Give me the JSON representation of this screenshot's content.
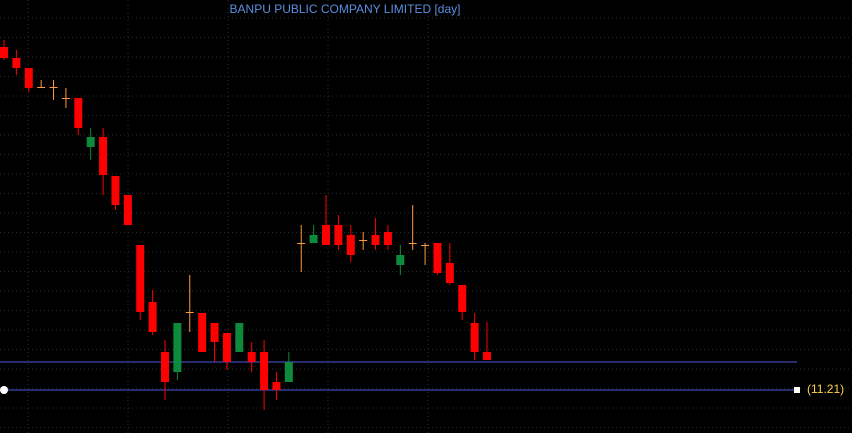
{
  "chart_data": {
    "type": "candlestick",
    "title": "BANPU PUBLIC COMPANY LIMITED [day]",
    "open": [
      14.64,
      14.53,
      14.43,
      14.24,
      14.24,
      14.13,
      14.13,
      13.64,
      13.74,
      13.35,
      13.16,
      12.66,
      12.09,
      11.59,
      11.39,
      11.99,
      11.98,
      11.88,
      11.78,
      11.59,
      11.59,
      11.59,
      11.29,
      11.29,
      12.68,
      12.68,
      12.86,
      12.86,
      12.76,
      12.71,
      12.76,
      12.79,
      12.46,
      12.68,
      12.66,
      12.68,
      12.48,
      12.26,
      11.88,
      11.59
    ],
    "high": [
      14.71,
      14.61,
      14.43,
      14.31,
      14.31,
      14.23,
      14.13,
      13.83,
      13.83,
      13.35,
      13.16,
      12.66,
      12.21,
      11.71,
      11.88,
      12.36,
      11.98,
      11.88,
      11.78,
      11.88,
      11.69,
      11.71,
      11.39,
      11.59,
      12.86,
      12.86,
      13.16,
      12.96,
      12.86,
      12.79,
      12.93,
      12.86,
      12.66,
      13.06,
      12.68,
      12.68,
      12.68,
      12.26,
      11.98,
      11.89
    ],
    "low": [
      14.51,
      14.36,
      14.19,
      14.23,
      14.11,
      14.03,
      13.76,
      13.51,
      13.16,
      13.01,
      12.86,
      11.91,
      11.76,
      11.11,
      11.31,
      11.79,
      11.59,
      11.49,
      11.41,
      11.59,
      11.39,
      11.01,
      11.11,
      11.29,
      12.39,
      12.68,
      12.66,
      12.61,
      12.49,
      12.61,
      12.61,
      12.61,
      12.36,
      12.61,
      12.46,
      12.36,
      12.26,
      11.91,
      11.51,
      11.51
    ],
    "close": [
      14.53,
      14.43,
      14.23,
      14.24,
      14.24,
      14.13,
      13.83,
      13.74,
      13.36,
      13.06,
      12.86,
      11.99,
      11.79,
      11.29,
      11.88,
      11.99,
      11.59,
      11.69,
      11.49,
      11.88,
      11.49,
      11.21,
      11.21,
      11.49,
      12.68,
      12.76,
      12.66,
      12.66,
      12.56,
      12.71,
      12.66,
      12.66,
      12.56,
      12.68,
      12.66,
      12.38,
      12.28,
      11.99,
      11.59,
      11.51
    ],
    "up_color": "#0e8a3c",
    "down_color": "#ff0000",
    "doji_color": "#ff9a3c",
    "ylim": [
      10.78,
      15.11
    ],
    "hlines": [
      {
        "value": 11.49
      },
      {
        "value": 11.21,
        "label": "(11.21)"
      }
    ]
  }
}
